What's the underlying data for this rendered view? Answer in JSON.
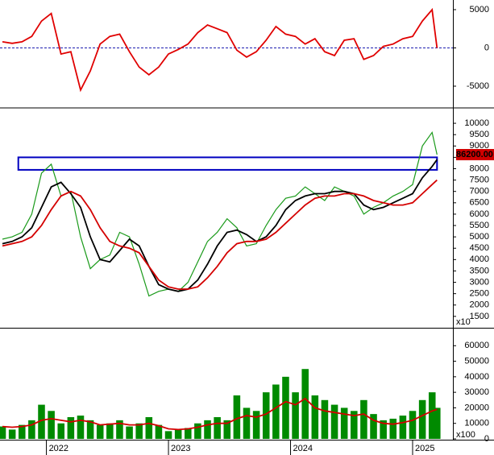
{
  "chart_data": [
    {
      "type": "line",
      "xlim": [
        2021.62,
        2025.33
      ],
      "ylim": [
        -7630,
        6050
      ],
      "yticks": [
        -5000,
        0,
        5000
      ],
      "hline": 0,
      "x": [
        2021.64,
        2021.72,
        2021.8,
        2021.88,
        2021.96,
        2022.04,
        2022.12,
        2022.2,
        2022.28,
        2022.36,
        2022.44,
        2022.52,
        2022.6,
        2022.68,
        2022.76,
        2022.84,
        2022.92,
        2023.0,
        2023.08,
        2023.16,
        2023.24,
        2023.32,
        2023.4,
        2023.48,
        2023.56,
        2023.64,
        2023.72,
        2023.8,
        2023.88,
        2023.96,
        2024.04,
        2024.12,
        2024.2,
        2024.28,
        2024.36,
        2024.44,
        2024.52,
        2024.6,
        2024.68,
        2024.76,
        2024.84,
        2024.92,
        2025.0,
        2025.08,
        2025.16,
        2025.2
      ],
      "series": [
        {
          "color": "#e00000",
          "values": [
            800,
            600,
            800,
            1500,
            3500,
            4500,
            -800,
            -500,
            -5500,
            -3000,
            500,
            1500,
            1800,
            -500,
            -2500,
            -3500,
            -2500,
            -800,
            -200,
            500,
            2000,
            3000,
            2500,
            2000,
            -300,
            -1200,
            -500,
            1000,
            2800,
            1800,
            1500,
            500,
            1200,
            -500,
            -1000,
            1000,
            1200,
            -1500,
            -1000,
            200,
            500,
            1200,
            1500,
            3500,
            5000,
            0
          ]
        }
      ]
    },
    {
      "type": "line",
      "xlim": [
        2021.62,
        2025.33
      ],
      "ylim": [
        1070,
        10570
      ],
      "yticks": [
        1500,
        2000,
        2500,
        3000,
        3500,
        4000,
        4500,
        5000,
        5500,
        6000,
        6500,
        7000,
        7500,
        8000,
        8500,
        9000,
        9500,
        10000
      ],
      "axis_unit": "x10",
      "zone": {
        "x": [
          2021.77,
          2025.2
        ],
        "y": [
          7950,
          8500
        ],
        "color": "#0000c0"
      },
      "last_label": {
        "value": 8620,
        "label": "86200.00"
      },
      "x": [
        2021.64,
        2021.72,
        2021.8,
        2021.88,
        2021.96,
        2022.04,
        2022.12,
        2022.2,
        2022.28,
        2022.36,
        2022.44,
        2022.52,
        2022.6,
        2022.68,
        2022.76,
        2022.84,
        2022.92,
        2023.0,
        2023.08,
        2023.16,
        2023.24,
        2023.32,
        2023.4,
        2023.48,
        2023.56,
        2023.64,
        2023.72,
        2023.8,
        2023.88,
        2023.96,
        2024.04,
        2024.12,
        2024.2,
        2024.28,
        2024.36,
        2024.44,
        2024.52,
        2024.6,
        2024.68,
        2024.76,
        2024.84,
        2024.92,
        2025.0,
        2025.08,
        2025.16,
        2025.2
      ],
      "series": [
        {
          "color": "#1a9a1a",
          "values": [
            4900,
            5000,
            5200,
            6000,
            7800,
            8200,
            6800,
            7000,
            5000,
            3600,
            4000,
            4200,
            5200,
            5000,
            3800,
            2400,
            2600,
            2700,
            2600,
            3000,
            3900,
            4800,
            5200,
            5800,
            5400,
            4600,
            4700,
            5500,
            6200,
            6700,
            6800,
            7200,
            6900,
            6600,
            7200,
            7000,
            6800,
            6000,
            6300,
            6500,
            6800,
            7000,
            7300,
            9000,
            9600,
            8620
          ]
        },
        {
          "color": "#000000",
          "values": [
            4700,
            4800,
            5000,
            5400,
            6300,
            7200,
            7400,
            6900,
            6300,
            5000,
            4000,
            3900,
            4400,
            4900,
            4600,
            3700,
            2900,
            2700,
            2600,
            2700,
            3100,
            3800,
            4600,
            5200,
            5300,
            5100,
            4800,
            5000,
            5500,
            6200,
            6600,
            6800,
            6900,
            6900,
            7000,
            7000,
            6900,
            6400,
            6200,
            6300,
            6500,
            6700,
            6900,
            7600,
            8100,
            8400
          ]
        },
        {
          "color": "#d40000",
          "values": [
            4600,
            4700,
            4800,
            5000,
            5500,
            6200,
            6800,
            7000,
            6800,
            6200,
            5400,
            4800,
            4600,
            4500,
            4300,
            3700,
            3100,
            2800,
            2700,
            2700,
            2800,
            3200,
            3700,
            4300,
            4700,
            4800,
            4800,
            4900,
            5200,
            5600,
            6000,
            6400,
            6700,
            6800,
            6800,
            6900,
            6900,
            6800,
            6600,
            6500,
            6400,
            6400,
            6500,
            6900,
            7300,
            7500
          ]
        }
      ]
    },
    {
      "type": "bar",
      "xlim": [
        2021.62,
        2025.33
      ],
      "ylim": [
        0,
        70000
      ],
      "yticks": [
        0,
        10000,
        20000,
        30000,
        40000,
        50000,
        60000
      ],
      "xticks": [
        2022,
        2023,
        2024,
        2025
      ],
      "axis_unit": "x100",
      "x": [
        2021.64,
        2021.72,
        2021.8,
        2021.88,
        2021.96,
        2022.04,
        2022.12,
        2022.2,
        2022.28,
        2022.36,
        2022.44,
        2022.52,
        2022.6,
        2022.68,
        2022.76,
        2022.84,
        2022.92,
        2023.0,
        2023.08,
        2023.16,
        2023.24,
        2023.32,
        2023.4,
        2023.48,
        2023.56,
        2023.64,
        2023.72,
        2023.8,
        2023.88,
        2023.96,
        2024.04,
        2024.12,
        2024.2,
        2024.28,
        2024.36,
        2024.44,
        2024.52,
        2024.6,
        2024.68,
        2024.76,
        2024.84,
        2024.92,
        2025.0,
        2025.08,
        2025.16,
        2025.2
      ],
      "series": [
        {
          "type": "bar",
          "color": "#008a00",
          "values": [
            8000,
            6000,
            9000,
            12000,
            22000,
            18000,
            10000,
            14000,
            15000,
            12000,
            9000,
            10000,
            12000,
            8000,
            10000,
            14000,
            9000,
            5000,
            6000,
            7000,
            10000,
            12000,
            14000,
            12000,
            28000,
            20000,
            18000,
            30000,
            35000,
            40000,
            30000,
            45000,
            28000,
            25000,
            22000,
            20000,
            18000,
            25000,
            16000,
            12000,
            13000,
            15000,
            18000,
            25000,
            30000,
            20000
          ]
        },
        {
          "type": "line",
          "color": "#d40000",
          "values": [
            8000,
            7500,
            8000,
            9000,
            12000,
            13000,
            12000,
            11000,
            12000,
            11000,
            9000,
            9500,
            10000,
            9000,
            9000,
            10000,
            8500,
            6500,
            6000,
            6500,
            7500,
            9000,
            10000,
            10000,
            13000,
            15000,
            14000,
            16000,
            20000,
            24000,
            22000,
            26000,
            20000,
            18000,
            17000,
            16000,
            15000,
            16000,
            12000,
            10000,
            9500,
            10500,
            12000,
            15000,
            18000,
            19000
          ]
        }
      ]
    }
  ]
}
